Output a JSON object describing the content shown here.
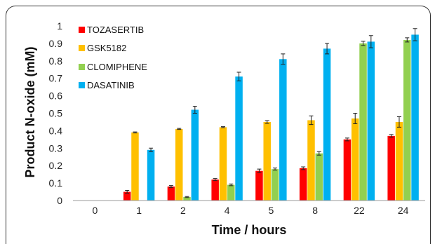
{
  "chart_data": {
    "type": "bar",
    "xlabel": "Time / hours",
    "ylabel": "Product N-oxide (mM)",
    "categories": [
      "0",
      "1",
      "2",
      "4",
      "5",
      "8",
      "22",
      "24"
    ],
    "ylim": [
      0,
      1
    ],
    "yticks": [
      "0",
      "0.1",
      "0.2",
      "0.3",
      "0.4",
      "0.5",
      "0.6",
      "0.7",
      "0.8",
      "0.9",
      "1"
    ],
    "grid": false,
    "legend_position": "top-left",
    "series": [
      {
        "name": "TOZASERTIB",
        "color": "#ff0000",
        "values": [
          0,
          0.05,
          0.08,
          0.12,
          0.17,
          0.185,
          0.35,
          0.37
        ],
        "errors": [
          0,
          0.008,
          0.006,
          0.006,
          0.01,
          0.008,
          0.008,
          0.008
        ]
      },
      {
        "name": "GSK5182",
        "color": "#ffc000",
        "values": [
          0,
          0.39,
          0.41,
          0.42,
          0.45,
          0.46,
          0.47,
          0.45
        ],
        "errors": [
          0,
          0.003,
          0.003,
          0.003,
          0.008,
          0.025,
          0.03,
          0.03
        ]
      },
      {
        "name": "CLOMIPHENE",
        "color": "#92d050",
        "values": [
          0,
          0,
          0.02,
          0.09,
          0.18,
          0.27,
          0.9,
          0.92
        ],
        "errors": [
          0,
          0,
          0.003,
          0.005,
          0.006,
          0.01,
          0.012,
          0.012
        ]
      },
      {
        "name": "DASATINIB",
        "color": "#00b0f0",
        "values": [
          0,
          0.29,
          0.52,
          0.71,
          0.81,
          0.87,
          0.91,
          0.95
        ],
        "errors": [
          0,
          0.01,
          0.02,
          0.025,
          0.03,
          0.03,
          0.035,
          0.035
        ]
      }
    ]
  }
}
